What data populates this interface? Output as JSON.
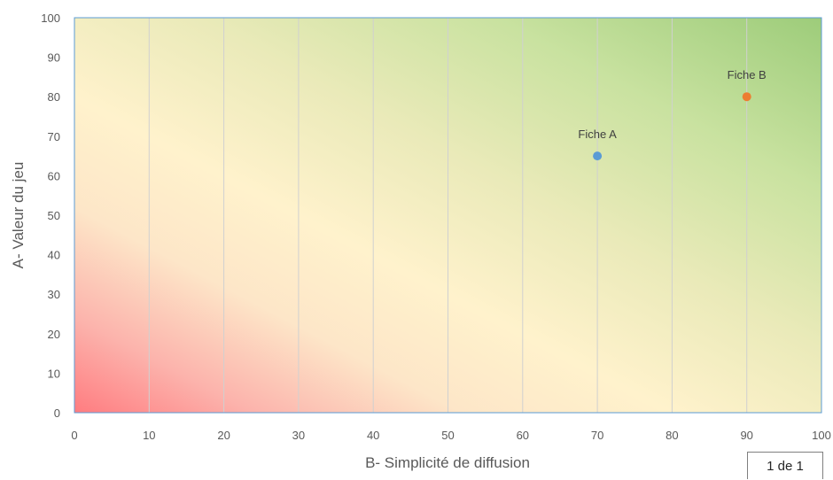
{
  "chart_data": {
    "type": "scatter",
    "title": "",
    "xlabel": "B- Simplicité de diffusion",
    "ylabel": "A- Valeur du jeu",
    "xlim": [
      0,
      100
    ],
    "ylim": [
      0,
      100
    ],
    "xticks": [
      0,
      10,
      20,
      30,
      40,
      50,
      60,
      70,
      80,
      90,
      100
    ],
    "yticks": [
      0,
      10,
      20,
      30,
      40,
      50,
      60,
      70,
      80,
      90,
      100
    ],
    "grid": "vertical",
    "background": "diagonal gradient from red (low) through cream to green (high)",
    "points": [
      {
        "label": "Fiche A",
        "x": 70,
        "y": 65,
        "color": "#5b9bd5"
      },
      {
        "label": "Fiche B",
        "x": 90,
        "y": 80,
        "color": "#ed7d31"
      }
    ],
    "colors": {
      "low": "#ff7c80",
      "mid": "#fff2cc",
      "high": "#9dcc7a",
      "plot_border": "#5b9bd5",
      "gridline": "#d0d0d0"
    }
  },
  "footer": {
    "page_indicator": "1 de 1"
  }
}
